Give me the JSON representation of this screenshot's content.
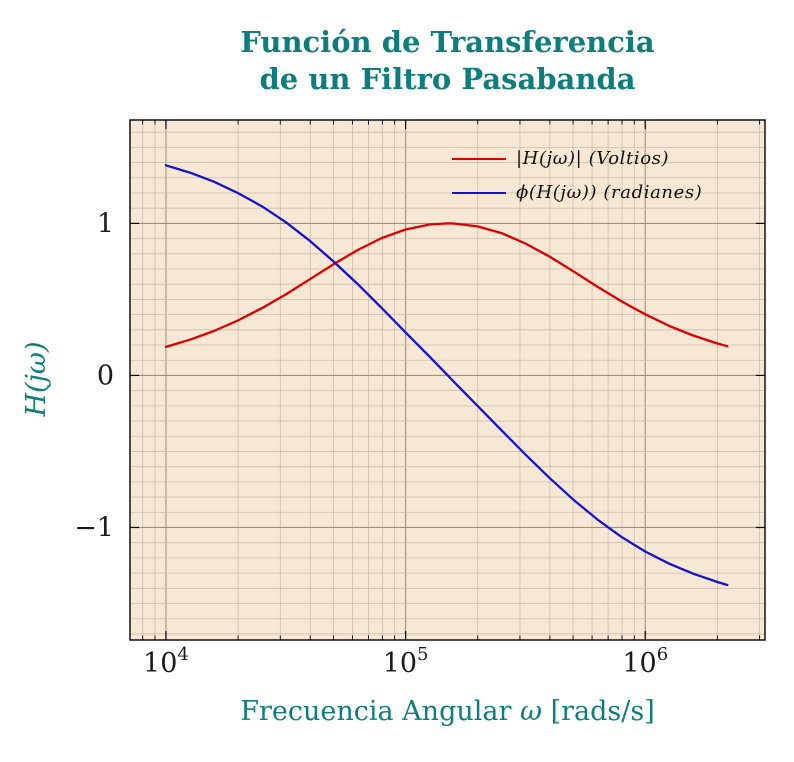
{
  "title": {
    "line1": "Función de Transferencia",
    "line2": "de un Filtro Pasabanda"
  },
  "y_axis": {
    "label": "H(jω)",
    "ticks": [
      {
        "label": "1",
        "value": 1
      },
      {
        "label": "0",
        "value": 0
      },
      {
        "label": "−1",
        "value": -1
      }
    ]
  },
  "x_axis": {
    "label_prefix": "Frecuencia Angular ",
    "label_symbol": "ω",
    "label_suffix": " [rads/s]",
    "ticks": [
      {
        "base": "10",
        "exponent": "4",
        "value": 10000
      },
      {
        "base": "10",
        "exponent": "5",
        "value": 100000
      },
      {
        "base": "10",
        "exponent": "6",
        "value": 1000000
      }
    ]
  },
  "legend": {
    "items": [
      {
        "label": "|H(jω)| (Voltios)",
        "series": "magnitude",
        "color": "#dd0000"
      },
      {
        "label": "ϕ(H(jω)) (radianes)",
        "series": "phase",
        "color": "#1414cd"
      }
    ]
  },
  "colors": {
    "title": "#0e7d7d",
    "axis_label": "#0e7d7d",
    "plot_bg": "#f7e8d6",
    "frame": "#000000",
    "grid_major": "#a08f7d",
    "grid_minor": "#cdbca9",
    "magnitude": "#dd0000",
    "phase": "#1414cd",
    "tick_label": "#1a1a1a"
  },
  "chart_data": {
    "type": "line",
    "title": "Función de Transferencia de un Filtro Pasabanda",
    "xlabel": "Frecuencia Angular ω [rads/s]",
    "ylabel": "H(jω)",
    "x_scale": "log10",
    "xlim": [
      7080,
      3160000
    ],
    "ylim": [
      -1.74,
      1.68
    ],
    "x_major_ticks": [
      10000,
      100000,
      1000000
    ],
    "y_major_ticks": [
      -1,
      0,
      1
    ],
    "grid": "major and minor; log-spaced vertical minors, 0.1-step horizontal minors",
    "legend_position": "top-right inside",
    "x": [
      10000,
      12589,
      15849,
      19953,
      25119,
      31623,
      39811,
      50119,
      63096,
      79433,
      100000,
      125893,
      150000,
      158489,
      199526,
      251189,
      316228,
      398107,
      501187,
      630957,
      794328,
      1000000,
      1258925,
      1584893,
      1995262,
      2200000
    ],
    "series": [
      {
        "name": "|H(jω)| (Voltios)",
        "color": "#dd0000",
        "values": [
          0.188,
          0.235,
          0.292,
          0.361,
          0.442,
          0.533,
          0.632,
          0.732,
          0.825,
          0.903,
          0.96,
          0.993,
          1.0,
          0.999,
          0.98,
          0.936,
          0.868,
          0.782,
          0.685,
          0.584,
          0.488,
          0.402,
          0.326,
          0.263,
          0.211,
          0.192
        ]
      },
      {
        "name": "ϕ(H(jω)) (radianes)",
        "color": "#1414cd",
        "values": [
          1.382,
          1.334,
          1.274,
          1.2,
          1.113,
          1.008,
          0.886,
          0.749,
          0.601,
          0.444,
          0.283,
          0.123,
          0.0,
          -0.039,
          -0.2,
          -0.361,
          -0.52,
          -0.673,
          -0.817,
          -0.947,
          -1.061,
          -1.158,
          -1.238,
          -1.304,
          -1.358,
          -1.378
        ]
      }
    ]
  }
}
